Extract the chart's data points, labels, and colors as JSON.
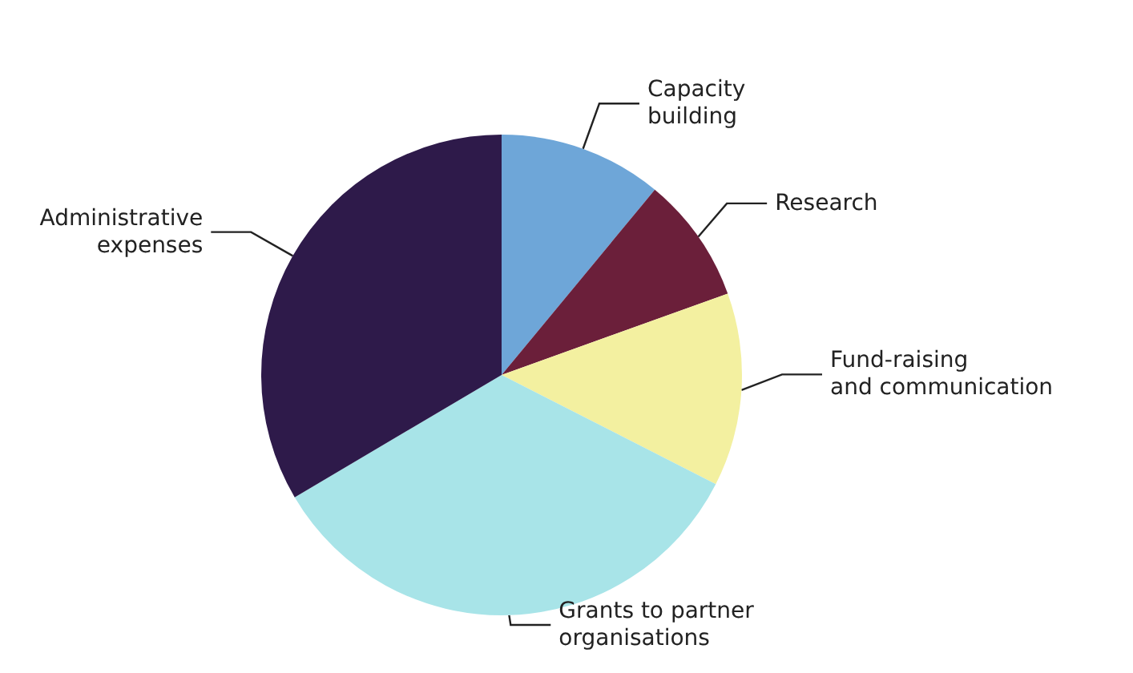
{
  "chart_data": {
    "type": "pie",
    "categories": [
      "Capacity\nbuilding",
      "Research",
      "Fund-raising\nand communication",
      "Grants to partner\norganisations",
      "Administrative\nexpenses"
    ],
    "values": [
      11,
      8.5,
      13,
      34,
      33.5
    ],
    "colors": [
      "#6ea6d8",
      "#6b1f3a",
      "#f3f0a0",
      "#a8e4e8",
      "#2e1a4a"
    ],
    "legend": false
  }
}
